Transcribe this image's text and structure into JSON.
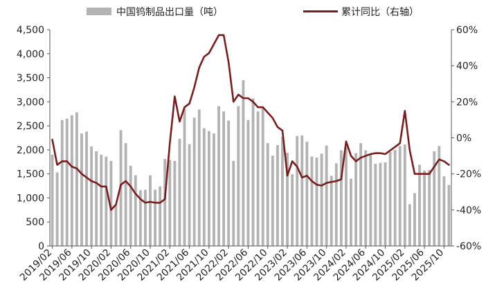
{
  "chart_data": {
    "type": "bar",
    "legend_position": "top",
    "grid": false,
    "colors": {
      "bar": "#b3b3b3",
      "line": "#7b1c1c",
      "axis": "#555555",
      "text": "#222222"
    },
    "series": [
      {
        "name": "中国钨制品出口量（吨）",
        "type": "bar",
        "axis": "left",
        "values": [
          1900,
          1530,
          2620,
          2650,
          2720,
          2780,
          2340,
          2380,
          2070,
          1970,
          1900,
          1860,
          1770,
          860,
          2410,
          2140,
          1670,
          1470,
          1160,
          1170,
          1470,
          1170,
          1240,
          1810,
          1790,
          1770,
          2230,
          2860,
          2120,
          2670,
          2840,
          2450,
          2390,
          2340,
          2910,
          2800,
          2610,
          1770,
          2910,
          3450,
          2620,
          3070,
          2800,
          2880,
          2140,
          1880,
          2100,
          2270,
          1940,
          1490,
          2290,
          2300,
          2170,
          1860,
          1840,
          1920,
          2090,
          1460,
          1720,
          1990,
          2060,
          1400,
          1930,
          2140,
          1990,
          1910,
          1710,
          1730,
          1740,
          1960,
          2000,
          2080,
          2110,
          870,
          1100,
          1690,
          1570,
          1580,
          1970,
          2080,
          1450,
          1270
        ]
      },
      {
        "name": "累计同比（右轴）",
        "type": "line",
        "axis": "right",
        "values": [
          -1,
          -15,
          -13,
          -13,
          -16,
          -17,
          -20,
          -22,
          -24,
          -25,
          -27,
          -27,
          -40,
          -37,
          -26,
          -24,
          -27,
          -31,
          -34,
          -36,
          -35.5,
          -36,
          -36,
          -34,
          -3,
          23,
          9,
          17,
          19,
          28,
          39,
          45,
          47,
          52,
          57,
          57,
          42,
          20,
          24,
          22,
          22,
          20,
          17,
          17,
          14,
          11,
          6,
          4,
          -21,
          -13,
          -16,
          -22,
          -21,
          -24,
          -26,
          -26.5,
          -25,
          -24.5,
          -24,
          -23,
          -2,
          -10,
          -13,
          -11,
          -10,
          -9,
          -8.5,
          -8.5,
          -9,
          -7,
          -5,
          -3,
          15,
          -7,
          -20,
          -20,
          -20,
          -20,
          -16,
          -12,
          -13,
          -15
        ]
      }
    ],
    "y_left": {
      "min": 0,
      "max": 4500,
      "ticks": [
        "0",
        "500",
        "1,000",
        "1,500",
        "2,000",
        "2,500",
        "3,000",
        "3,500",
        "4,000",
        "4,500"
      ]
    },
    "y_right": {
      "min": -60,
      "max": 60,
      "ticks": [
        "-60%",
        "-40%",
        "-20%",
        "0%",
        "20%",
        "40%",
        "60%"
      ]
    },
    "x_ticks": [
      {
        "index": 0,
        "label": "2019/02"
      },
      {
        "index": 4,
        "label": "2019/06"
      },
      {
        "index": 8,
        "label": "2019/10"
      },
      {
        "index": 12,
        "label": "2020/02"
      },
      {
        "index": 16,
        "label": "2020/06"
      },
      {
        "index": 20,
        "label": "2020/10"
      },
      {
        "index": 24,
        "label": "2021/02"
      },
      {
        "index": 28,
        "label": "2021/06"
      },
      {
        "index": 32,
        "label": "2021/10"
      },
      {
        "index": 36,
        "label": "2022/02"
      },
      {
        "index": 40,
        "label": "2022/06"
      },
      {
        "index": 44,
        "label": "2022/10"
      },
      {
        "index": 48,
        "label": "2023/02"
      },
      {
        "index": 52,
        "label": "2023/06"
      },
      {
        "index": 56,
        "label": "2023/10"
      },
      {
        "index": 60,
        "label": "2024/02"
      },
      {
        "index": 64,
        "label": "2024/06"
      },
      {
        "index": 68,
        "label": "2024/10"
      },
      {
        "index": 72,
        "label": "2025/02"
      },
      {
        "index": 76,
        "label": "2025/06"
      },
      {
        "index": 80,
        "label": "2025/10"
      }
    ]
  }
}
